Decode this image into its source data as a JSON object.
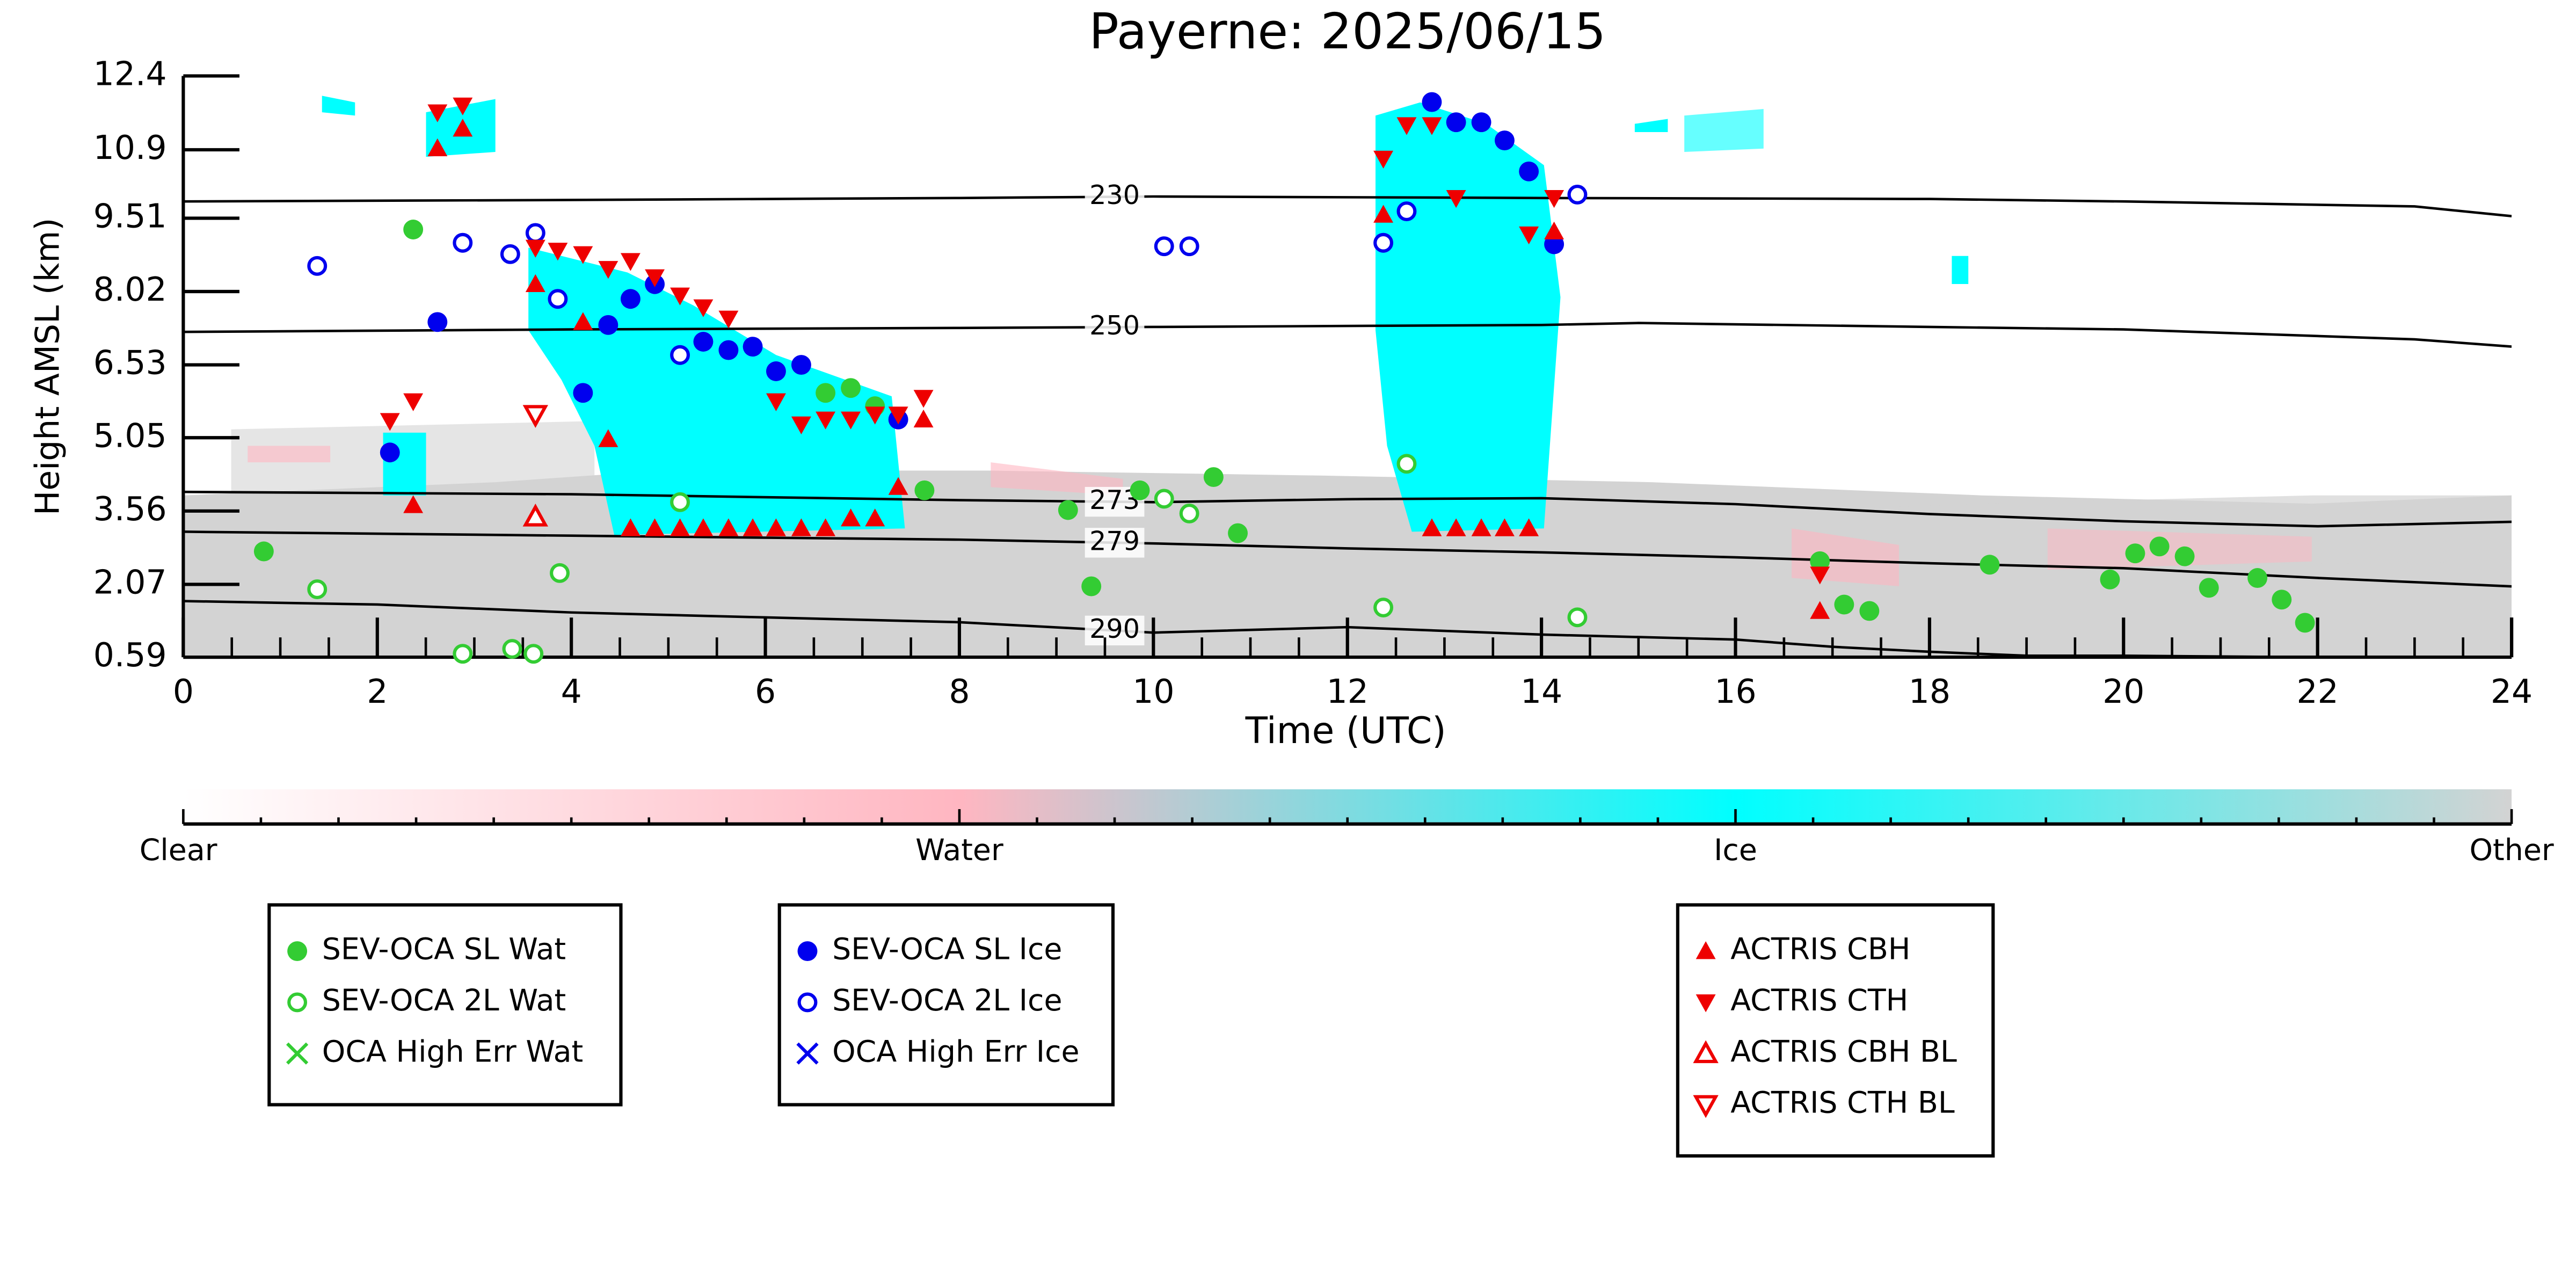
{
  "chart_data": {
    "type": "scatter",
    "title": "Payerne: 2025/06/15",
    "x_label": "Time (UTC)",
    "y_label": "Height AMSL (km)",
    "xlim": [
      0,
      24
    ],
    "xticks": [
      0,
      2,
      4,
      6,
      8,
      10,
      12,
      14,
      16,
      18,
      20,
      22,
      24
    ],
    "ylim": [
      0.59,
      12.4
    ],
    "yticks": [
      0.59,
      2.07,
      3.56,
      5.05,
      6.53,
      8.02,
      9.51,
      10.9,
      12.4
    ],
    "series": [
      {
        "name": "SEV-OCA SL Wat",
        "color": "#33cc33",
        "marker": "o",
        "x": [
          0.83,
          2.37,
          6.62,
          6.88,
          7.13,
          7.64,
          9.12,
          9.36,
          9.86,
          10.62,
          10.87,
          16.87,
          17.12,
          17.38,
          18.62,
          19.86,
          20.12,
          20.37,
          20.63,
          20.88,
          21.38,
          21.63,
          21.87
        ],
        "values": [
          2.74,
          9.28,
          5.96,
          6.06,
          5.69,
          3.98,
          3.58,
          2.03,
          3.98,
          4.25,
          3.11,
          2.54,
          1.66,
          1.53,
          2.47,
          2.17,
          2.7,
          2.84,
          2.64,
          2.0,
          2.2,
          1.76,
          1.29
        ]
      },
      {
        "name": "SEV-OCA 2L Wat",
        "color": "#33cc33",
        "marker": "o-open",
        "x": [
          1.38,
          2.88,
          3.39,
          3.61,
          3.88,
          5.12,
          10.11,
          10.37,
          12.37,
          12.61,
          14.37
        ],
        "values": [
          1.97,
          0.66,
          0.76,
          0.66,
          2.3,
          3.74,
          3.81,
          3.51,
          1.6,
          4.52,
          1.4
        ]
      },
      {
        "name": "OCA High Err Wat",
        "color": "#33cc33",
        "marker": "x",
        "x": [],
        "values": []
      },
      {
        "name": "SEV-OCA SL Ice",
        "color": "#0000ee",
        "marker": "o",
        "x": [
          2.13,
          2.62,
          4.12,
          4.38,
          4.61,
          4.86,
          5.36,
          5.62,
          5.87,
          6.11,
          6.37,
          7.37,
          12.87,
          13.12,
          13.38,
          13.62,
          13.87,
          14.13
        ],
        "values": [
          4.75,
          7.4,
          5.96,
          7.34,
          7.87,
          8.17,
          7.0,
          6.83,
          6.9,
          6.4,
          6.53,
          5.42,
          11.87,
          11.46,
          11.46,
          11.09,
          10.46,
          8.98
        ]
      },
      {
        "name": "SEV-OCA 2L Ice",
        "color": "#0000ee",
        "marker": "o-open",
        "x": [
          1.38,
          2.88,
          3.37,
          3.63,
          3.86,
          5.12,
          10.11,
          10.37,
          12.37,
          12.61,
          14.37
        ],
        "values": [
          8.54,
          9.01,
          8.78,
          9.21,
          7.87,
          6.73,
          8.94,
          8.94,
          9.01,
          9.65,
          9.99
        ]
      },
      {
        "name": "OCA High Err Ice",
        "color": "#0000ee",
        "marker": "x",
        "x": [],
        "values": []
      },
      {
        "name": "ACTRIS CBH",
        "color": "#ee0000",
        "marker": "^",
        "x": [
          2.62,
          2.88,
          2.37,
          3.63,
          4.12,
          4.38,
          4.61,
          4.86,
          5.12,
          5.36,
          5.62,
          5.87,
          6.11,
          6.37,
          6.62,
          6.88,
          7.13,
          7.37,
          7.63,
          12.37,
          12.87,
          13.12,
          13.38,
          13.62,
          13.87,
          14.13,
          16.87
        ],
        "values": [
          10.93,
          11.33,
          3.68,
          8.17,
          7.4,
          5.02,
          3.21,
          3.21,
          3.21,
          3.21,
          3.21,
          3.21,
          3.21,
          3.21,
          3.21,
          3.41,
          3.41,
          4.05,
          5.42,
          9.58,
          3.21,
          3.21,
          3.21,
          3.21,
          3.21,
          9.24,
          1.53
        ]
      },
      {
        "name": "ACTRIS CTH",
        "color": "#ee0000",
        "marker": "v",
        "x": [
          2.13,
          2.37,
          2.62,
          2.88,
          3.63,
          3.86,
          4.12,
          4.38,
          4.61,
          4.86,
          5.12,
          5.36,
          5.62,
          6.11,
          6.37,
          6.62,
          6.88,
          7.13,
          7.37,
          7.63,
          12.37,
          12.61,
          12.87,
          13.12,
          13.87,
          14.13,
          16.87
        ],
        "values": [
          5.39,
          5.79,
          11.66,
          11.8,
          8.91,
          8.85,
          8.78,
          8.48,
          8.64,
          8.31,
          7.94,
          7.7,
          7.47,
          5.79,
          5.32,
          5.42,
          5.42,
          5.52,
          5.52,
          5.86,
          10.72,
          11.4,
          11.4,
          9.92,
          9.18,
          9.92,
          2.27
        ]
      },
      {
        "name": "ACTRIS CBH BL",
        "color": "#ee0000",
        "marker": "^-open",
        "x": [
          3.63
        ],
        "values": [
          3.44
        ]
      },
      {
        "name": "ACTRIS CTH BL",
        "color": "#ee0000",
        "marker": "v-open",
        "x": [
          3.63
        ],
        "values": [
          5.52
        ]
      }
    ],
    "contours": [
      {
        "label": "230",
        "label_x": 9.6,
        "x": [
          0,
          4,
          8,
          10,
          14,
          18,
          20,
          23,
          24
        ],
        "values": [
          9.85,
          9.88,
          9.92,
          9.95,
          9.92,
          9.9,
          9.85,
          9.75,
          9.55
        ]
      },
      {
        "label": "250",
        "label_x": 9.6,
        "x": [
          0,
          4,
          8,
          10,
          14,
          15,
          18,
          20,
          23,
          24
        ],
        "values": [
          7.2,
          7.25,
          7.28,
          7.3,
          7.34,
          7.38,
          7.3,
          7.25,
          7.05,
          6.9
        ]
      },
      {
        "label": "273",
        "label_x": 9.6,
        "x": [
          0,
          4,
          8,
          10,
          12,
          14,
          16,
          18,
          20,
          22,
          24
        ],
        "values": [
          3.95,
          3.9,
          3.78,
          3.74,
          3.8,
          3.82,
          3.7,
          3.5,
          3.35,
          3.25,
          3.34
        ]
      },
      {
        "label": "279",
        "label_x": 9.6,
        "x": [
          0,
          4,
          8,
          10,
          12,
          14,
          16,
          18,
          20,
          22,
          24
        ],
        "values": [
          3.14,
          3.06,
          2.98,
          2.9,
          2.8,
          2.72,
          2.62,
          2.5,
          2.4,
          2.2,
          2.03
        ]
      },
      {
        "label": "290",
        "label_x": 9.6,
        "x": [
          0,
          2,
          4,
          6,
          8,
          10,
          12,
          14,
          16,
          17,
          18,
          19,
          20,
          22
        ],
        "values": [
          1.73,
          1.66,
          1.5,
          1.4,
          1.3,
          1.09,
          1.2,
          1.05,
          0.95,
          0.8,
          0.7,
          0.62,
          0.62,
          0.59
        ]
      }
    ],
    "colorbar": {
      "labels": [
        "Clear",
        "Water",
        "Ice",
        "Other"
      ],
      "colors": [
        "#ffffff",
        "#ffb6c1",
        "#00ffff",
        "#d3d3d3"
      ]
    }
  }
}
